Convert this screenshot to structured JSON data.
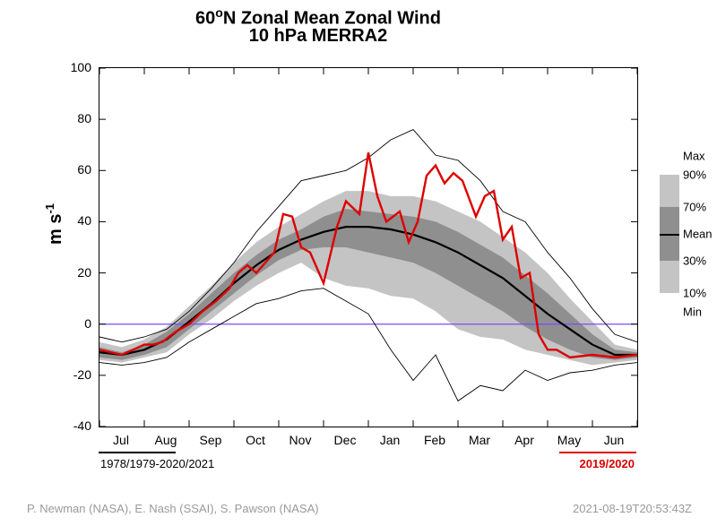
{
  "chart": {
    "type": "line_with_envelope",
    "title_line1_html": "60<sup>o</sup>N Zonal Mean Zonal Wind",
    "title_line2": "10 hPa   MERRA2",
    "ylabel_html": "m s<sup>-1</sup>",
    "xlim": [
      0,
      12
    ],
    "ylim": [
      -40,
      100
    ],
    "ytick_step": 20,
    "xtick_labels": [
      "Jul",
      "Aug",
      "Sep",
      "Oct",
      "Nov",
      "Dec",
      "Jan",
      "Feb",
      "Mar",
      "Apr",
      "May",
      "Jun"
    ],
    "xtick_positions": [
      0.5,
      1.5,
      2.5,
      3.5,
      4.5,
      5.5,
      6.5,
      7.5,
      8.5,
      9.5,
      10.5,
      11.5
    ],
    "ytick_labels": [
      "-40",
      "-20",
      "0",
      "20",
      "40",
      "60",
      "80",
      "100"
    ],
    "ytick_positions": [
      -40,
      -20,
      0,
      20,
      40,
      60,
      80,
      100
    ],
    "plot_bg": "#ffffff",
    "axis_color": "#000000",
    "zero_line_color": "#7a4cff",
    "mean_line_color": "#000000",
    "mean_line_width": 2.2,
    "minmax_line_color": "#000000",
    "minmax_line_width": 0.9,
    "band_inner_color": "#8f8f8f",
    "band_outer_color": "#c4c4c4",
    "highlight_line_color": "#dd0000",
    "highlight_line_width": 2.4,
    "climatology_label": "1978/1979-2020/2021",
    "highlight_label": "2019/2020",
    "credits_left": "P. Newman (NASA), E. Nash (SSAI), S. Pawson (NASA)",
    "credits_right": "2021-08-19T20:53:43Z",
    "series": {
      "x": [
        0.0,
        0.5,
        1.0,
        1.5,
        2.0,
        2.5,
        3.0,
        3.5,
        4.0,
        4.5,
        5.0,
        5.5,
        6.0,
        6.5,
        7.0,
        7.5,
        8.0,
        8.5,
        9.0,
        9.5,
        10.0,
        10.5,
        11.0,
        11.5,
        12.0
      ],
      "mean": [
        -11,
        -12,
        -10,
        -6,
        1,
        8,
        16,
        23,
        29,
        33,
        36,
        38,
        38,
        37,
        35,
        32,
        28,
        23,
        18,
        11,
        4,
        -2,
        -8,
        -12,
        -12
      ],
      "max": [
        -5,
        -7,
        -5,
        -2,
        5,
        14,
        24,
        36,
        46,
        56,
        58,
        60,
        65,
        72,
        76,
        66,
        64,
        56,
        44,
        40,
        28,
        18,
        6,
        -4,
        -7
      ],
      "min": [
        -15,
        -16,
        -15,
        -13,
        -7,
        -2,
        3,
        8,
        10,
        13,
        14,
        9,
        4,
        -10,
        -22,
        -12,
        -30,
        -24,
        -26,
        -18,
        -22,
        -19,
        -18,
        -16,
        -15
      ],
      "p10": [
        -14,
        -15,
        -13,
        -11,
        -4,
        2,
        9,
        15,
        20,
        24,
        18,
        15,
        14,
        11,
        10,
        5,
        -2,
        -5,
        -6,
        -10,
        -12,
        -14,
        -16,
        -15,
        -14
      ],
      "p30": [
        -13,
        -14,
        -12,
        -9,
        -2,
        5,
        12,
        19,
        25,
        29,
        30,
        30,
        28,
        26,
        24,
        20,
        15,
        10,
        5,
        -1,
        -6,
        -10,
        -13,
        -14,
        -13
      ],
      "p70": [
        -9,
        -11,
        -8,
        -3,
        4,
        12,
        20,
        27,
        33,
        37,
        42,
        45,
        44,
        43,
        42,
        40,
        36,
        31,
        26,
        19,
        12,
        4,
        -4,
        -10,
        -11
      ],
      "p90": [
        -7,
        -9,
        -6,
        -1,
        7,
        15,
        24,
        32,
        38,
        43,
        48,
        52,
        52,
        50,
        50,
        48,
        44,
        40,
        34,
        28,
        20,
        10,
        1,
        -8,
        -10
      ],
      "year_x": [
        0.0,
        0.5,
        1.0,
        1.2,
        1.4,
        1.7,
        2.0,
        2.3,
        2.6,
        2.9,
        3.1,
        3.3,
        3.5,
        3.7,
        3.9,
        4.1,
        4.3,
        4.5,
        4.7,
        5.0,
        5.3,
        5.5,
        5.8,
        6.0,
        6.2,
        6.4,
        6.7,
        6.9,
        7.1,
        7.3,
        7.5,
        7.7,
        7.9,
        8.1,
        8.4,
        8.6,
        8.8,
        9.0,
        9.2,
        9.4,
        9.6,
        9.8,
        10.0,
        10.2,
        10.5,
        11.0,
        11.5,
        12.0
      ],
      "year_y": [
        -10,
        -12,
        -8,
        -8,
        -7,
        -3,
        0,
        5,
        9,
        14,
        20,
        23,
        20,
        24,
        28,
        43,
        42,
        30,
        28,
        16,
        38,
        48,
        43,
        67,
        50,
        40,
        44,
        32,
        40,
        58,
        62,
        55,
        59,
        56,
        42,
        50,
        52,
        33,
        38,
        18,
        20,
        -4,
        -10,
        -10,
        -13,
        -12,
        -13,
        -12
      ]
    },
    "legend": {
      "labels": {
        "max": "Max",
        "p90": "90%",
        "p70": "70%",
        "mean": "Mean",
        "p30": "30%",
        "p10": "10%",
        "min": "Min"
      },
      "positions": {
        "max": 0,
        "p90": 0.12,
        "p70": 0.33,
        "mean": 0.5,
        "p30": 0.67,
        "p10": 0.88,
        "min": 1.0
      }
    }
  }
}
